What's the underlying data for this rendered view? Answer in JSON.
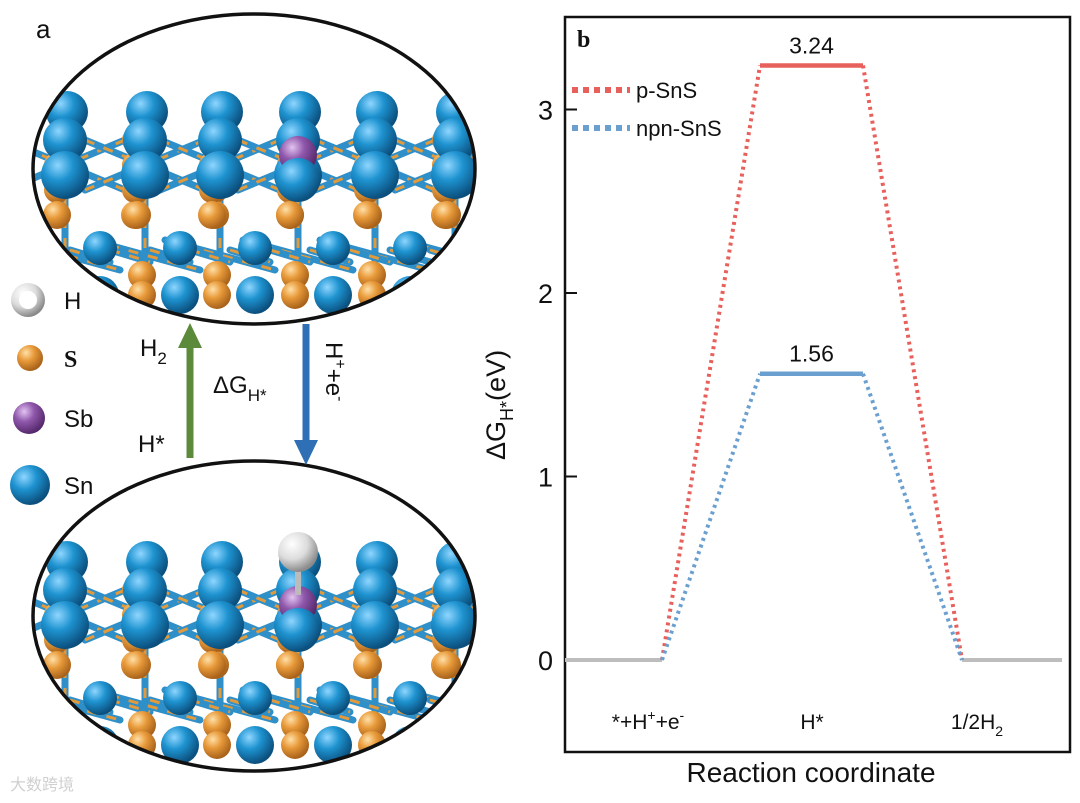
{
  "panel_a": {
    "label": "a",
    "legend": [
      {
        "name": "H",
        "color": "#d8d8d8"
      },
      {
        "name": "S",
        "color": "#e39a3b"
      },
      {
        "name": "Sb",
        "color": "#8e54a8"
      },
      {
        "name": "Sn",
        "color": "#1a8fca"
      }
    ],
    "arrow_up_top": "H",
    "arrow_up_top_sub": "2",
    "arrow_up_bottom": "H*",
    "dg_main": "ΔG",
    "dg_sub": "H*",
    "arrow_down_main": "H",
    "arrow_down_plus": "+",
    "arrow_down_plus_e": "+e",
    "arrow_down_minus": "-",
    "arrow_up_color": "#5b8a3a",
    "arrow_down_color": "#2f6fb5"
  },
  "chart_data": {
    "type": "line",
    "panel_label": "b",
    "xlabel": "Reaction coordinate",
    "ylabel_main": "ΔG",
    "ylabel_sub": "H*",
    "ylabel_unit": "(eV)",
    "ylim": [
      -0.5,
      3.5
    ],
    "yticks": [
      0,
      1,
      2,
      3
    ],
    "categories": [
      "*+H⁺+e⁻",
      "H*",
      "1/2H₂"
    ],
    "category_parts": [
      {
        "main": "*+H",
        "sup1": "+",
        "mid": "+e",
        "sup2": "-"
      },
      {
        "main": "H*"
      },
      {
        "main": "1/2H",
        "sub": "2"
      }
    ],
    "series": [
      {
        "name": "p-SnS",
        "values": [
          0,
          3.24,
          0
        ],
        "color": "#e8605c"
      },
      {
        "name": "npn-SnS",
        "values": [
          0,
          1.56,
          0
        ],
        "color": "#6a9fcf"
      }
    ],
    "annotations": [
      "3.24",
      "1.56"
    ],
    "baseline_color": "#bdbdbd",
    "legend_position": "top-left"
  },
  "watermark": "大数跨境"
}
